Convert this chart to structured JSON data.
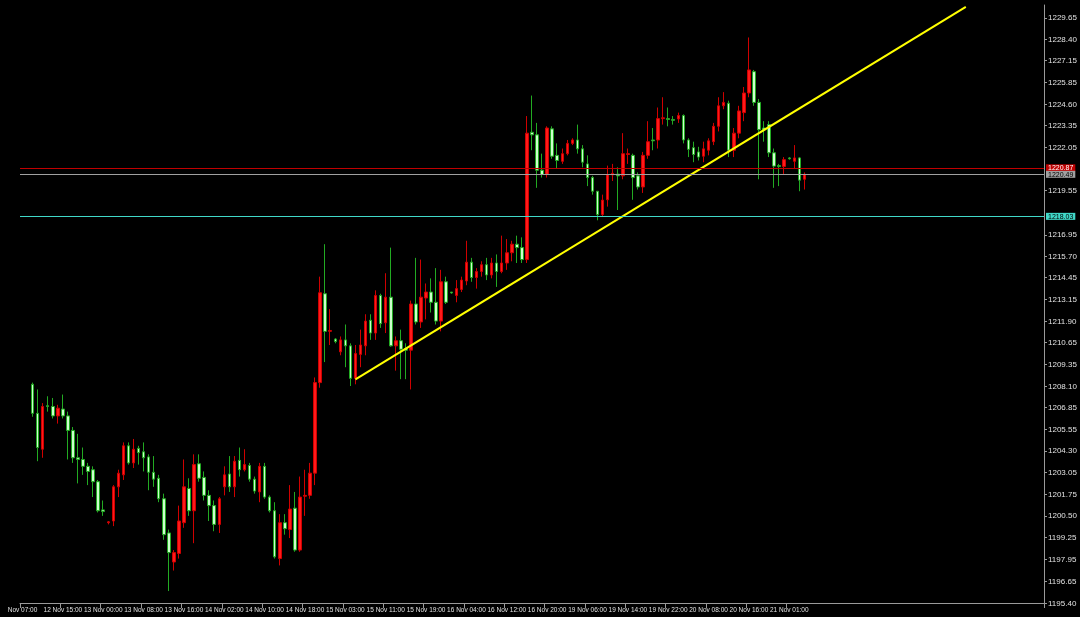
{
  "chart_data": {
    "type": "candlestick",
    "categories": [
      "Nov 07:00",
      null,
      null,
      null,
      null,
      null,
      null,
      null,
      "12 Nov 15:00",
      null,
      null,
      null,
      null,
      null,
      null,
      null,
      "13 Nov 00:00",
      null,
      null,
      null,
      null,
      null,
      null,
      null,
      "13 Nov 08:00",
      null,
      null,
      null,
      null,
      null,
      null,
      null,
      "13 Nov 16:00",
      null,
      null,
      null,
      null,
      null,
      null,
      null,
      "14 Nov 02:00",
      null,
      null,
      null,
      null,
      null,
      null,
      null,
      "14 Nov 10:00",
      null,
      null,
      null,
      null,
      null,
      null,
      null,
      "14 Nov 18:00",
      null,
      null,
      null,
      null,
      null,
      null,
      null,
      "15 Nov 03:00",
      null,
      null,
      null,
      null,
      null,
      null,
      null,
      "15 Nov 11:00",
      null,
      null,
      null,
      null,
      null,
      null,
      null,
      "15 Nov 19:00",
      null,
      null,
      null,
      null,
      null,
      null,
      null,
      "16 Nov 04:00",
      null,
      null,
      null,
      null,
      null,
      null,
      null,
      "16 Nov 12:00",
      null,
      null,
      null,
      null,
      null,
      null,
      null,
      "16 Nov 20:00",
      null,
      null,
      null,
      null,
      null,
      null,
      null,
      "19 Nov 06:00",
      null,
      null,
      null,
      null,
      null,
      null,
      null,
      "19 Nov 14:00",
      null,
      null,
      null,
      null,
      null,
      null,
      null,
      "19 Nov 22:00",
      null,
      null,
      null,
      null,
      null,
      null,
      null,
      "20 Nov 08:00",
      null,
      null,
      null,
      null,
      null,
      null,
      null,
      "20 Nov 16:00",
      null,
      null,
      null,
      null,
      null,
      null,
      null,
      "21 Nov 01:00",
      null,
      null,
      null,
      null,
      null,
      null,
      null,
      null,
      null,
      null,
      null,
      null,
      null,
      null,
      null,
      null,
      null,
      null,
      null,
      null,
      null,
      null,
      null,
      null,
      null,
      null,
      null,
      null,
      null,
      null,
      null,
      null,
      null,
      null,
      null,
      null,
      null,
      null,
      null,
      null,
      null,
      null,
      null,
      null,
      null,
      null,
      null,
      null,
      null,
      null
    ],
    "ohlc": [
      null,
      null,
      [
        1208.2,
        1208.3,
        1206.3,
        1206.5
      ],
      [
        1206.5,
        1207.9,
        1203.7,
        1204.5
      ],
      [
        1204.4,
        1207.1,
        1203.9,
        1206.9
      ],
      [
        1206.95,
        1207.5,
        1206.6,
        1206.9
      ],
      [
        1206.9,
        1207.4,
        1206.2,
        1206.35
      ],
      [
        1206.35,
        1207.0,
        1205.9,
        1206.8
      ],
      [
        1206.75,
        1207.6,
        1206.2,
        1206.35
      ],
      [
        1206.35,
        1206.6,
        1203.8,
        1205.5
      ],
      [
        1205.5,
        1205.7,
        1203.6,
        1203.9
      ],
      [
        1203.9,
        1205.3,
        1202.4,
        1203.8
      ],
      [
        1203.8,
        1204.5,
        1202.9,
        1203.4
      ],
      [
        1203.4,
        1203.6,
        1202.3,
        1203.1
      ],
      [
        1203.2,
        1203.4,
        1201.6,
        1202.5
      ],
      [
        1202.5,
        1202.6,
        1200.7,
        1200.8
      ],
      [
        1200.85,
        1201.4,
        1200.5,
        1200.75
      ],
      [
        1200.1,
        1200.2,
        1200.0,
        1200.15
      ],
      [
        1200.2,
        1202.3,
        1199.9,
        1202.2
      ],
      [
        1202.2,
        1203.2,
        1201.6,
        1203.0
      ],
      [
        1202.9,
        1204.8,
        1202.6,
        1204.6
      ],
      [
        1204.6,
        1204.8,
        1203.5,
        1203.6
      ],
      [
        1203.6,
        1205.0,
        1203.3,
        1204.4
      ],
      [
        1204.45,
        1204.6,
        1203.5,
        1204.2
      ],
      [
        1204.25,
        1204.8,
        1203.1,
        1203.9
      ],
      [
        1203.95,
        1204.1,
        1202.0,
        1203.05
      ],
      [
        1203.05,
        1204.0,
        1202.2,
        1202.65
      ],
      [
        1202.7,
        1202.9,
        1201.3,
        1201.5
      ],
      [
        1201.5,
        1201.8,
        1199.1,
        1199.4
      ],
      [
        1199.5,
        1199.7,
        1196.1,
        1198.35
      ],
      [
        1197.8,
        1198.5,
        1197.3,
        1198.35
      ],
      [
        1198.3,
        1201.1,
        1198.0,
        1200.2
      ],
      [
        1200.1,
        1203.8,
        1199.8,
        1202.2
      ],
      [
        1202.1,
        1202.7,
        1200.5,
        1200.8
      ],
      [
        1200.8,
        1204.1,
        1198.9,
        1203.5
      ],
      [
        1203.55,
        1204.1,
        1202.5,
        1202.7
      ],
      [
        1202.75,
        1203.1,
        1201.4,
        1201.7
      ],
      [
        1201.7,
        1202.0,
        1200.2,
        1201.1
      ],
      [
        1201.1,
        1201.4,
        1199.6,
        1200.0
      ],
      [
        1200.0,
        1201.6,
        1199.5,
        1201.5
      ],
      [
        1202.2,
        1203.4,
        1201.7,
        1202.9
      ],
      [
        1202.95,
        1204.0,
        1201.9,
        1202.2
      ],
      [
        1202.2,
        1204.0,
        1201.6,
        1203.7
      ],
      [
        1203.75,
        1204.5,
        1202.8,
        1203.2
      ],
      [
        1203.2,
        1204.4,
        1203.1,
        1203.5
      ],
      [
        1203.45,
        1203.6,
        1202.5,
        1202.65
      ],
      [
        1202.65,
        1202.8,
        1201.8,
        1201.95
      ],
      [
        1201.9,
        1203.6,
        1201.3,
        1203.4
      ],
      [
        1203.4,
        1203.6,
        1201.5,
        1201.6
      ],
      [
        1201.6,
        1201.7,
        1200.7,
        1200.8
      ],
      [
        1200.8,
        1201.3,
        1198.0,
        1198.1
      ],
      [
        1198.0,
        1200.6,
        1197.6,
        1200.1
      ],
      [
        1200.1,
        1200.6,
        1199.4,
        1199.75
      ],
      [
        1199.7,
        1202.3,
        1199.2,
        1200.9
      ],
      [
        1200.95,
        1201.9,
        1198.4,
        1198.5
      ],
      [
        1198.5,
        1202.8,
        1198.4,
        1201.6
      ],
      [
        1201.65,
        1203.2,
        1200.5,
        1201.7
      ],
      [
        1201.7,
        1203.6,
        1201.5,
        1203.0
      ],
      [
        1203.0,
        1208.6,
        1202.3,
        1208.3
      ],
      [
        1208.3,
        1214.5,
        1208.0,
        1213.56
      ],
      [
        1213.5,
        1216.4,
        1209.5,
        1211.3
      ],
      [
        1211.3,
        1212.6,
        1210.5,
        1211.35
      ],
      [
        1210.85,
        1210.9,
        1210.6,
        1210.7
      ],
      [
        1210.1,
        1211.0,
        1209.9,
        1210.8
      ],
      [
        1210.8,
        1211.7,
        1209.2,
        1210.45
      ],
      [
        1210.45,
        1210.6,
        1208.1,
        1208.55
      ],
      [
        1208.55,
        1210.5,
        1208.2,
        1210.0
      ],
      [
        1209.95,
        1211.4,
        1209.2,
        1210.5
      ],
      [
        1210.45,
        1212.3,
        1209.9,
        1211.9
      ],
      [
        1211.95,
        1212.3,
        1210.8,
        1211.2
      ],
      [
        1211.2,
        1213.7,
        1210.8,
        1213.4
      ],
      [
        1213.4,
        1213.5,
        1211.5,
        1211.75
      ],
      [
        1211.8,
        1214.7,
        1211.2,
        1213.3
      ],
      [
        1213.3,
        1216.2,
        1210.4,
        1210.45
      ],
      [
        1210.45,
        1211.0,
        1209.0,
        1210.75
      ],
      [
        1210.75,
        1211.4,
        1208.5,
        1210.25
      ],
      [
        1210.3,
        1210.6,
        1208.5,
        1210.2
      ],
      [
        1210.2,
        1213.1,
        1207.9,
        1212.9
      ],
      [
        1212.9,
        1215.6,
        1211.7,
        1211.85
      ],
      [
        1211.85,
        1215.5,
        1211.5,
        1213.3
      ],
      [
        1213.25,
        1214.1,
        1212.0,
        1213.6
      ],
      [
        1213.6,
        1214.4,
        1212.4,
        1213.0
      ],
      [
        1213.0,
        1215.0,
        1211.7,
        1211.9
      ],
      [
        1211.9,
        1214.9,
        1211.3,
        1214.2
      ],
      [
        1214.2,
        1214.5,
        1212.9,
        1213.0
      ],
      [
        1213.6,
        1213.6,
        1213.5,
        1213.55
      ],
      [
        1213.4,
        1214.3,
        1213.0,
        1213.8
      ],
      [
        1213.75,
        1214.5,
        1213.6,
        1214.3
      ],
      [
        1214.25,
        1216.6,
        1214.0,
        1215.35
      ],
      [
        1215.35,
        1215.6,
        1214.2,
        1214.45
      ],
      [
        1214.45,
        1215.0,
        1213.8,
        1214.8
      ],
      [
        1214.8,
        1215.4,
        1214.5,
        1215.2
      ],
      [
        1215.2,
        1215.6,
        1214.3,
        1214.6
      ],
      [
        1214.6,
        1215.6,
        1214.4,
        1215.3
      ],
      [
        1215.3,
        1215.8,
        1213.9,
        1214.8
      ],
      [
        1214.8,
        1216.9,
        1214.7,
        1215.3
      ],
      [
        1215.3,
        1216.7,
        1214.9,
        1215.9
      ],
      [
        1215.9,
        1216.6,
        1215.4,
        1216.4
      ],
      [
        1216.4,
        1216.9,
        1215.3,
        1216.2
      ],
      [
        1216.2,
        1216.8,
        1215.3,
        1215.5
      ],
      [
        1215.5,
        1223.9,
        1215.3,
        1222.9
      ],
      [
        1222.95,
        1225.1,
        1221.9,
        1222.8
      ],
      [
        1222.8,
        1223.5,
        1219.7,
        1220.73
      ],
      [
        1220.73,
        1221.7,
        1220.3,
        1220.48
      ],
      [
        1220.48,
        1223.3,
        1220.3,
        1223.2
      ],
      [
        1223.15,
        1223.3,
        1221.4,
        1221.55
      ],
      [
        1221.6,
        1222.3,
        1220.8,
        1221.3
      ],
      [
        1221.25,
        1222.0,
        1221.1,
        1221.7
      ],
      [
        1221.7,
        1222.5,
        1221.6,
        1222.3
      ],
      [
        1222.3,
        1222.6,
        1222.2,
        1222.5
      ],
      [
        1222.5,
        1223.4,
        1221.7,
        1221.98
      ],
      [
        1221.98,
        1222.2,
        1220.9,
        1221.2
      ],
      [
        1221.1,
        1221.6,
        1219.8,
        1220.3
      ],
      [
        1220.3,
        1220.4,
        1219.3,
        1219.5
      ],
      [
        1219.5,
        1219.5,
        1217.8,
        1218.14
      ],
      [
        1218.14,
        1219.3,
        1218.0,
        1218.98
      ],
      [
        1219.0,
        1221.0,
        1218.6,
        1220.48
      ],
      [
        1220.45,
        1221.1,
        1220.1,
        1220.55
      ],
      [
        1220.5,
        1220.9,
        1218.4,
        1220.4
      ],
      [
        1220.4,
        1222.9,
        1220.2,
        1221.7
      ],
      [
        1221.65,
        1222.0,
        1221.1,
        1221.7
      ],
      [
        1221.6,
        1221.7,
        1219.0,
        1220.3
      ],
      [
        1220.4,
        1220.6,
        1219.6,
        1219.75
      ],
      [
        1219.75,
        1221.8,
        1219.4,
        1221.6
      ],
      [
        1221.6,
        1223.6,
        1221.4,
        1222.4
      ],
      [
        1222.5,
        1223.2,
        1221.9,
        1222.45
      ],
      [
        1222.5,
        1224.4,
        1222.0,
        1223.75
      ],
      [
        1223.75,
        1225.0,
        1223.4,
        1223.8
      ],
      [
        1223.75,
        1224.4,
        1223.3,
        1223.7
      ],
      [
        1223.7,
        1223.9,
        1223.4,
        1223.65
      ],
      [
        1223.73,
        1224.1,
        1223.5,
        1223.93
      ],
      [
        1223.93,
        1224.0,
        1222.3,
        1222.5
      ],
      [
        1222.5,
        1222.6,
        1221.5,
        1221.95
      ],
      [
        1222.05,
        1222.4,
        1221.2,
        1221.65
      ],
      [
        1221.8,
        1222.1,
        1221.3,
        1221.5
      ],
      [
        1221.55,
        1222.4,
        1221.2,
        1221.98
      ],
      [
        1221.9,
        1222.6,
        1221.6,
        1222.45
      ],
      [
        1222.4,
        1223.5,
        1222.2,
        1223.3
      ],
      [
        1223.3,
        1225.0,
        1223.0,
        1224.5
      ],
      [
        1224.5,
        1225.3,
        1224.3,
        1224.7
      ],
      [
        1224.65,
        1224.8,
        1221.5,
        1221.9
      ],
      [
        1221.9,
        1223.2,
        1221.5,
        1222.9
      ],
      [
        1222.9,
        1224.5,
        1222.6,
        1224.2
      ],
      [
        1224.1,
        1225.6,
        1223.6,
        1225.25
      ],
      [
        1225.25,
        1228.5,
        1225.0,
        1226.6
      ],
      [
        1226.5,
        1226.6,
        1224.5,
        1224.7
      ],
      [
        1224.7,
        1224.9,
        1220.2,
        1223.1
      ],
      [
        1223.2,
        1223.6,
        1222.4,
        1223.1
      ],
      [
        1223.4,
        1223.6,
        1221.5,
        1221.75
      ],
      [
        1221.75,
        1222.0,
        1219.7,
        1220.97
      ],
      [
        1221.0,
        1221.1,
        1219.8,
        1220.95
      ],
      [
        1220.95,
        1221.5,
        1220.5,
        1221.35
      ],
      [
        1221.45,
        1221.5,
        1221.35,
        1221.4
      ],
      [
        1221.25,
        1222.2,
        1220.8,
        1221.45
      ],
      [
        1221.45,
        1221.5,
        1219.5,
        1220.15
      ],
      [
        1220.2,
        1220.6,
        1219.6,
        1220.49
      ],
      null,
      null,
      null,
      null,
      null,
      null,
      null,
      null,
      null,
      null,
      null,
      null,
      null,
      null,
      null,
      null,
      null,
      null,
      null,
      null,
      null,
      null,
      null,
      null,
      null,
      null,
      null,
      null,
      null,
      null,
      null,
      null,
      null,
      null,
      null,
      null,
      null,
      null,
      null,
      null,
      null,
      null,
      null,
      null,
      null,
      null,
      null
    ],
    "series": [
      {
        "type": "line",
        "color": "#ffff00",
        "values": [
          null,
          null,
          null,
          null,
          null,
          null,
          null,
          null,
          null,
          null,
          null,
          null,
          null,
          null,
          null,
          null,
          null,
          null,
          null,
          null,
          null,
          null,
          null,
          null,
          null,
          null,
          null,
          null,
          null,
          null,
          null,
          null,
          null,
          null,
          null,
          null,
          null,
          null,
          null,
          null,
          null,
          null,
          null,
          null,
          null,
          null,
          null,
          null,
          null,
          null,
          null,
          null,
          null,
          null,
          null,
          null,
          null,
          null,
          null,
          null,
          null,
          null,
          null,
          null,
          null,
          null,
          1208.49,
          null,
          null,
          null,
          null,
          null,
          null,
          null,
          null,
          null,
          null,
          null,
          null,
          null,
          null,
          null,
          null,
          null,
          null,
          null,
          null,
          null,
          null,
          null,
          null,
          null,
          null,
          null,
          null,
          null,
          null,
          null,
          null,
          null,
          null,
          null,
          null,
          null,
          null,
          null,
          null,
          null,
          null,
          null,
          null,
          null,
          null,
          null,
          null,
          null,
          null,
          null,
          null,
          null,
          null,
          null,
          null,
          null,
          null,
          null,
          null,
          null,
          null,
          null,
          null,
          null,
          null,
          null,
          null,
          null,
          null,
          null,
          null,
          null,
          null,
          null,
          null,
          null,
          null,
          null,
          null,
          null,
          null,
          null,
          null,
          null,
          null,
          null,
          null,
          null,
          null,
          null,
          null,
          null,
          null,
          null,
          null,
          null,
          null,
          null,
          null,
          null,
          null,
          null,
          null,
          null,
          null,
          null,
          null,
          null,
          null,
          null,
          null,
          null,
          null,
          null,
          null,
          null,
          null,
          null,
          null,
          1230.29,
          null,
          null,
          null,
          null,
          null,
          null,
          null,
          null,
          null,
          null,
          null,
          null,
          null,
          null,
          null
        ]
      }
    ],
    "ylim": [
      1195.4,
      1230.4
    ],
    "yticks": [
      {
        "value": 1195.4,
        "label": "1195.40"
      },
      {
        "value": 1196.65,
        "label": "1196.65"
      },
      {
        "value": 1197.95,
        "label": "1197.95"
      },
      {
        "value": 1199.25,
        "label": "1199.25"
      },
      {
        "value": 1200.5,
        "label": "1200.50"
      },
      {
        "value": 1201.75,
        "label": "1201.75"
      },
      {
        "value": 1203.05,
        "label": "1203.05"
      },
      {
        "value": 1204.3,
        "label": "1204.30"
      },
      {
        "value": 1205.55,
        "label": "1205.55"
      },
      {
        "value": 1206.85,
        "label": "1206.85"
      },
      {
        "value": 1208.1,
        "label": "1208.10"
      },
      {
        "value": 1209.35,
        "label": "1209.35"
      },
      {
        "value": 1210.65,
        "label": "1210.65"
      },
      {
        "value": 1211.9,
        "label": "1211.90"
      },
      {
        "value": 1213.15,
        "label": "1213.15"
      },
      {
        "value": 1214.45,
        "label": "1214.45"
      },
      {
        "value": 1215.7,
        "label": "1215.70"
      },
      {
        "value": 1216.95,
        "label": "1216.95"
      },
      {
        "value": 1219.55,
        "label": "1219.55"
      },
      {
        "value": 1222.05,
        "label": "1222.05"
      },
      {
        "value": 1223.35,
        "label": "1223.35"
      },
      {
        "value": 1224.6,
        "label": "1224.60"
      },
      {
        "value": 1225.85,
        "label": "1225.85"
      },
      {
        "value": 1227.15,
        "label": "1227.15"
      },
      {
        "value": 1228.4,
        "label": "1228.40"
      },
      {
        "value": 1229.65,
        "label": "1229.65"
      }
    ],
    "ref_lines": [
      {
        "axis": "y",
        "value": 1220.87,
        "label": "1220.87",
        "color": "#c00000"
      },
      {
        "axis": "y",
        "value": 1220.49,
        "label": "1220.49",
        "color": "#a0a0a0"
      },
      {
        "axis": "y",
        "value": 1218.03,
        "label": "1218.03",
        "color": "#40d8c8"
      }
    ],
    "grid": false
  }
}
